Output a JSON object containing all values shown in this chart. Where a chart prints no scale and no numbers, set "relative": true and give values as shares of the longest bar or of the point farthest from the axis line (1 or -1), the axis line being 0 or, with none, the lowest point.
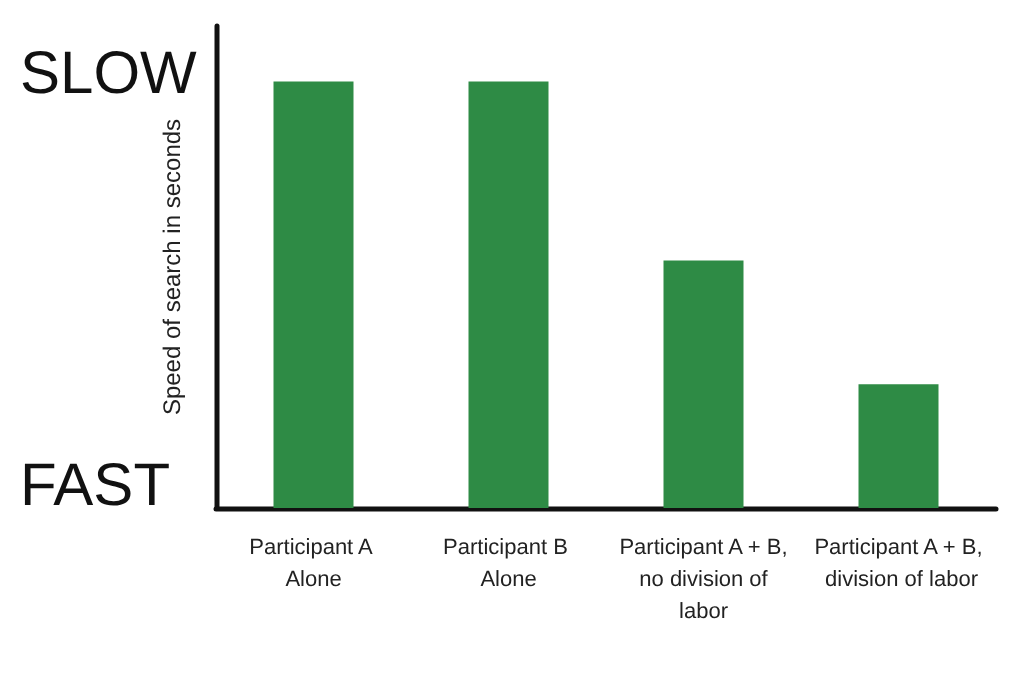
{
  "chart_data": {
    "type": "bar",
    "relative": true,
    "ylabel": "Speed of search in seconds",
    "categories": [
      "Participant A Alone",
      "Participant B Alone",
      "Participant A + B, no division of labor",
      "Participant A + B, division of labor"
    ],
    "values": [
      1,
      1,
      0.58,
      0.29
    ],
    "color": "#2e8b45",
    "grid": false,
    "annotations": [
      "SLOW",
      "FAST"
    ]
  }
}
